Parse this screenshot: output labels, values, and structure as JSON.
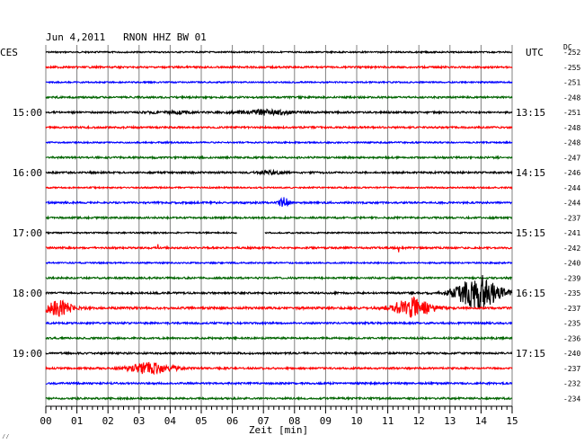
{
  "chart_data": {
    "type": "line",
    "title": "Jun 4,2011   RNON HHZ BW 01",
    "left_label": "CES",
    "right_label": "UTC",
    "dc_label": "DC",
    "xlabel": "Zeit [min]",
    "xlim": [
      0,
      15
    ],
    "x_ticks": [
      "00",
      "01",
      "02",
      "03",
      "04",
      "05",
      "06",
      "07",
      "08",
      "09",
      "10",
      "11",
      "12",
      "13",
      "14",
      "15"
    ],
    "rows_per_hour": 4,
    "line_colors": [
      "#000000",
      "#ff0000",
      "#0000ff",
      "#006400"
    ],
    "left_hour_labels": [
      "15:00",
      "16:00",
      "17:00",
      "18:00",
      "19:00"
    ],
    "right_hour_labels": [
      "13:15",
      "14:15",
      "15:15",
      "16:15",
      "17:15"
    ],
    "first_labeled_row": 4,
    "footer_mark": "⁄⁄",
    "series": [
      {
        "values": [
          -252
        ],
        "amplitude": 0.4
      },
      {
        "values": [
          -255
        ],
        "amplitude": 0.5
      },
      {
        "values": [
          -251
        ],
        "amplitude": 0.4
      },
      {
        "values": [
          -248
        ],
        "amplitude": 0.5
      },
      {
        "values": [
          -251
        ],
        "amplitude": 0.5,
        "bursts": [
          {
            "t": 7.0,
            "w": 1.6,
            "a": 1.3
          },
          {
            "t": 4.0,
            "w": 1.4,
            "a": 0.6
          }
        ]
      },
      {
        "values": [
          -248
        ],
        "amplitude": 0.5
      },
      {
        "values": [
          -248
        ],
        "amplitude": 0.4
      },
      {
        "values": [
          -247
        ],
        "amplitude": 0.5
      },
      {
        "values": [
          -246
        ],
        "amplitude": 0.5,
        "bursts": [
          {
            "t": 7.3,
            "w": 0.8,
            "a": 0.7
          }
        ]
      },
      {
        "values": [
          -244
        ],
        "amplitude": 0.4
      },
      {
        "values": [
          -244
        ],
        "amplitude": 0.5,
        "bursts": [
          {
            "t": 7.65,
            "w": 0.3,
            "a": 3.0
          }
        ]
      },
      {
        "values": [
          -237
        ],
        "amplitude": 0.5
      },
      {
        "values": [
          -241
        ],
        "amplitude": 0.4,
        "gap": [
          6.15,
          7.05
        ]
      },
      {
        "values": [
          -242
        ],
        "amplitude": 0.5,
        "spikes": [
          {
            "t": 3.6,
            "a": 4
          },
          {
            "t": 11.35,
            "a": 5
          }
        ]
      },
      {
        "values": [
          -240
        ],
        "amplitude": 0.4
      },
      {
        "values": [
          -239
        ],
        "amplitude": 0.5
      },
      {
        "values": [
          -235
        ],
        "amplitude": 0.5,
        "bursts": [
          {
            "t": 13.9,
            "w": 1.4,
            "a": 8.5
          }
        ],
        "spikes": [
          {
            "t": 14.05,
            "a": 20
          }
        ]
      },
      {
        "values": [
          -237
        ],
        "amplitude": 0.6,
        "bursts": [
          {
            "t": 0.4,
            "w": 0.9,
            "a": 4.0
          },
          {
            "t": 11.8,
            "w": 1.2,
            "a": 5.5
          }
        ]
      },
      {
        "values": [
          -235
        ],
        "amplitude": 0.5
      },
      {
        "values": [
          -236
        ],
        "amplitude": 0.5
      },
      {
        "values": [
          -240
        ],
        "amplitude": 0.5
      },
      {
        "values": [
          -237
        ],
        "amplitude": 0.5,
        "bursts": [
          {
            "t": 3.4,
            "w": 1.4,
            "a": 3.2
          }
        ]
      },
      {
        "values": [
          -232
        ],
        "amplitude": 0.5
      },
      {
        "values": [
          -234
        ],
        "amplitude": 0.5
      }
    ]
  }
}
